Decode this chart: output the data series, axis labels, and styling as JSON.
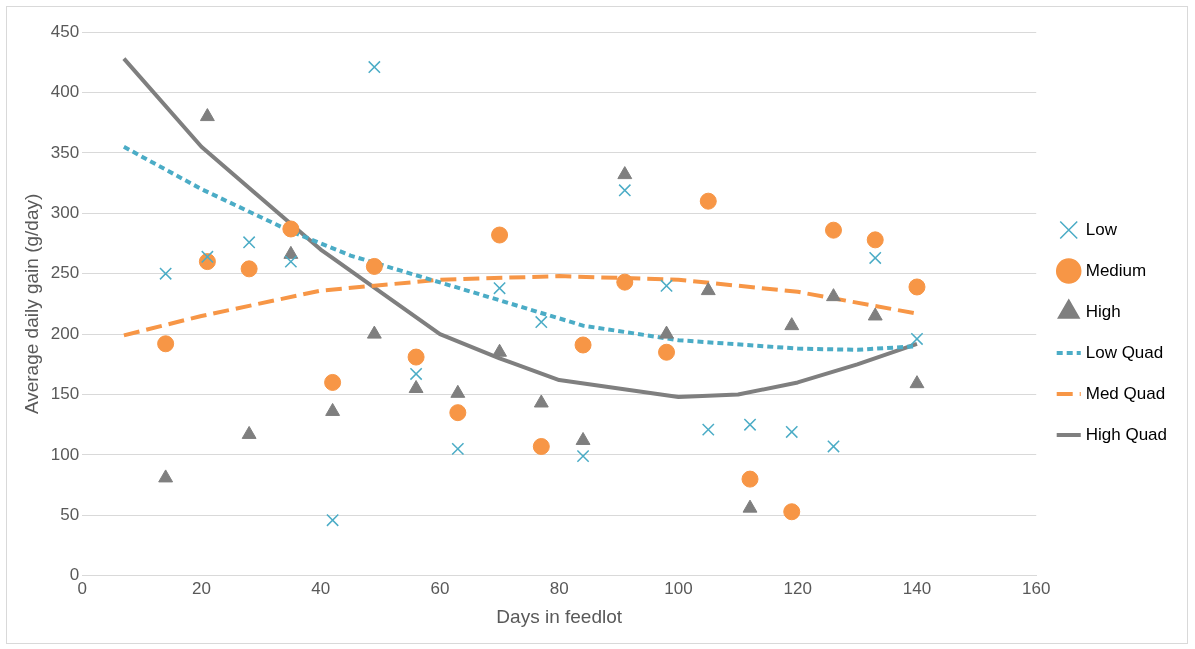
{
  "chart_data": {
    "type": "scatter",
    "xlabel": "Days in feedlot",
    "ylabel": "Average daily gain (g/day)",
    "xlim": [
      0,
      160
    ],
    "xticks": [
      0,
      20,
      40,
      60,
      80,
      100,
      120,
      140,
      160
    ],
    "ylim": [
      0,
      450
    ],
    "yticks": [
      0,
      50,
      100,
      150,
      200,
      250,
      300,
      350,
      400,
      450
    ],
    "grid": "y",
    "legend": "right",
    "series": [
      {
        "name": "Low",
        "type": "scatter",
        "marker": "cross",
        "color": "#4bacc6",
        "x": [
          14,
          21,
          28,
          35,
          42,
          49,
          56,
          63,
          70,
          77,
          84,
          91,
          98,
          105,
          112,
          119,
          126,
          133,
          140
        ],
        "values": [
          250,
          264,
          276,
          260,
          46,
          421,
          167,
          105,
          238,
          210,
          99,
          319,
          240,
          121,
          125,
          119,
          107,
          263,
          196
        ]
      },
      {
        "name": "Medium",
        "type": "scatter",
        "marker": "circle",
        "color": "#f79646",
        "x": [
          14,
          21,
          28,
          35,
          42,
          49,
          56,
          63,
          70,
          77,
          84,
          91,
          98,
          105,
          112,
          119,
          126,
          133,
          140
        ],
        "values": [
          192,
          260,
          254,
          287,
          160,
          256,
          181,
          135,
          282,
          107,
          191,
          243,
          185,
          310,
          80,
          53,
          286,
          278,
          239
        ]
      },
      {
        "name": "High",
        "type": "scatter",
        "marker": "triangle",
        "color": "#7f7f7f",
        "x": [
          14,
          21,
          28,
          35,
          42,
          49,
          56,
          63,
          70,
          77,
          84,
          91,
          98,
          105,
          112,
          119,
          126,
          133,
          140
        ],
        "values": [
          81,
          380,
          117,
          266,
          136,
          200,
          155,
          151,
          185,
          143,
          112,
          332,
          200,
          236,
          56,
          207,
          231,
          215,
          159
        ]
      },
      {
        "name": "Low Quad",
        "type": "line",
        "marker": "none",
        "line_style": "dotted",
        "color": "#4bacc6",
        "x": [
          7,
          20,
          35,
          45,
          70,
          84,
          100,
          120,
          130,
          140
        ],
        "values": [
          355,
          320,
          285,
          265,
          228,
          207,
          195,
          188,
          187,
          190
        ]
      },
      {
        "name": "Med Quad",
        "type": "line",
        "marker": "none",
        "line_style": "dashed",
        "color": "#f79646",
        "x": [
          7,
          20,
          40,
          60,
          80,
          100,
          120,
          140
        ],
        "values": [
          199,
          215,
          236,
          245,
          248,
          245,
          235,
          217
        ]
      },
      {
        "name": "High Quad",
        "type": "line",
        "marker": "none",
        "line_style": "solid",
        "color": "#7f7f7f",
        "x": [
          7,
          20,
          40,
          50,
          60,
          70,
          80,
          100,
          110,
          120,
          130,
          140
        ],
        "values": [
          428,
          355,
          270,
          235,
          200,
          180,
          162,
          148,
          150,
          160,
          175,
          192
        ]
      }
    ]
  }
}
